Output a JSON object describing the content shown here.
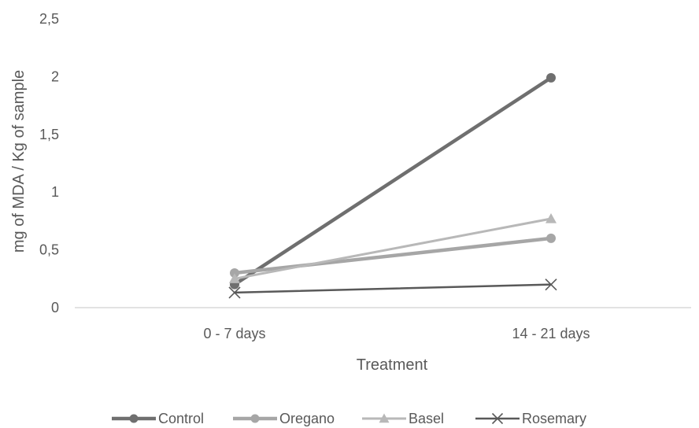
{
  "chart_data": {
    "type": "line",
    "title": "",
    "xlabel": "Treatment",
    "ylabel": "mg of MDA / Kg of sample",
    "categories": [
      "0 - 7 days",
      "14 - 21 days"
    ],
    "ylim": [
      0,
      2.5
    ],
    "yticks": [
      "0",
      "0,5",
      "1",
      "1,5",
      "2",
      "2,5"
    ],
    "grid": false,
    "legend_position": "bottom",
    "series": [
      {
        "name": "Control",
        "values": [
          0.2,
          1.99
        ],
        "color": "#6f6f6f",
        "marker": "circle"
      },
      {
        "name": "Oregano",
        "values": [
          0.3,
          0.6
        ],
        "color": "#a6a6a6",
        "marker": "circle"
      },
      {
        "name": "Basel",
        "values": [
          0.25,
          0.77
        ],
        "color": "#b8b8b8",
        "marker": "triangle"
      },
      {
        "name": "Rosemary",
        "values": [
          0.13,
          0.2
        ],
        "color": "#595959",
        "marker": "x"
      }
    ]
  }
}
